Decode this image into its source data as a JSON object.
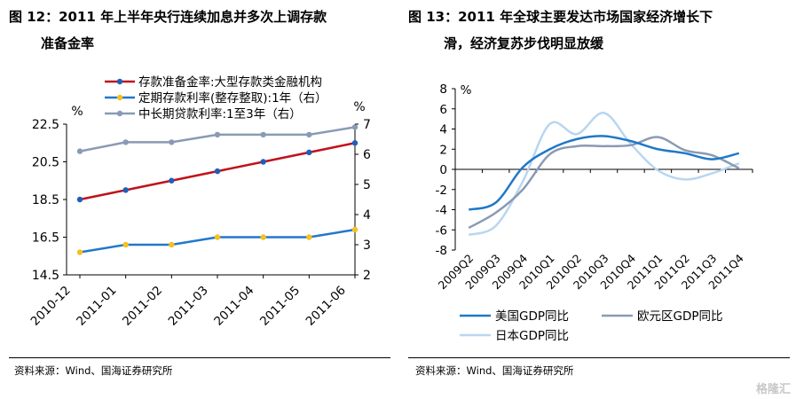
{
  "left": {
    "title_line1": "图 12：2011 年上半年央行连续加息并多次上调存款",
    "title_line2": "准备金率",
    "source": "资料来源：Wind、国海证券研究所"
  },
  "right": {
    "title_line1": "图 13：2011 年全球主要发达市场国家经济增长下",
    "title_line2": "滑，经济复苏步伐明显放缓",
    "source": "资料来源：Wind、国海证券研究所"
  },
  "watermark": "格隆汇",
  "chart_data": [
    {
      "type": "line",
      "categories": [
        "2010-12",
        "2011-01",
        "2011-02",
        "2011-03",
        "2011-04",
        "2011-05",
        "2011-06"
      ],
      "y_left": {
        "unit": "%",
        "lim": [
          14.5,
          22.5
        ],
        "ticks": [
          "14.5",
          "16.5",
          "18.5",
          "20.5",
          "22.5"
        ]
      },
      "y_right": {
        "unit": "%",
        "lim": [
          2,
          7
        ],
        "ticks": [
          "2",
          "3",
          "4",
          "5",
          "6",
          "7"
        ]
      },
      "series": [
        {
          "name": "存款准备金率:大型存款类金融机构",
          "axis": "left",
          "color": "#c0121b",
          "marker": "#1f5fb8",
          "values": [
            18.5,
            19.0,
            19.5,
            20.0,
            20.5,
            21.0,
            21.5
          ]
        },
        {
          "name": "定期存款利率(整存整取):1年（右）",
          "axis": "right",
          "color": "#2277cc",
          "marker": "#f5c020",
          "values": [
            2.75,
            3.0,
            3.0,
            3.25,
            3.25,
            3.25,
            3.5
          ]
        },
        {
          "name": "中长期贷款利率:1至3年（右）",
          "axis": "right",
          "color": "#8a9ab5",
          "marker": "#8a9ab5",
          "values": [
            6.1,
            6.4,
            6.4,
            6.65,
            6.65,
            6.65,
            6.9
          ]
        }
      ],
      "legend": "top-left",
      "grid": false
    },
    {
      "type": "line",
      "categories": [
        "2009Q2",
        "2009Q3",
        "2009Q4",
        "2010Q1",
        "2010Q2",
        "2010Q3",
        "2010Q4",
        "2011Q1",
        "2011Q2",
        "2011Q3",
        "2011Q4"
      ],
      "y": {
        "unit": "%",
        "lim": [
          -8,
          8
        ],
        "ticks": [
          "-8",
          "-6",
          "-4",
          "-2",
          "0",
          "2",
          "4",
          "6",
          "8"
        ]
      },
      "series": [
        {
          "name": "美国GDP同比",
          "color": "#1f78c8",
          "values": [
            -4.0,
            -3.3,
            0.2,
            2.0,
            3.0,
            3.3,
            2.8,
            2.0,
            1.6,
            1.0,
            1.6
          ]
        },
        {
          "name": "欧元区GDP同比",
          "color": "#8a9ab5",
          "values": [
            -5.8,
            -4.3,
            -2.0,
            1.5,
            2.3,
            2.3,
            2.4,
            3.2,
            1.9,
            1.4,
            0.1
          ]
        },
        {
          "name": "日本GDP同比",
          "color": "#b8d6f0",
          "values": [
            -6.5,
            -5.6,
            -1.2,
            4.5,
            3.5,
            5.6,
            2.5,
            -0.1,
            -1.0,
            -0.4,
            0.6
          ]
        }
      ],
      "legend": "bottom",
      "grid": false
    }
  ]
}
